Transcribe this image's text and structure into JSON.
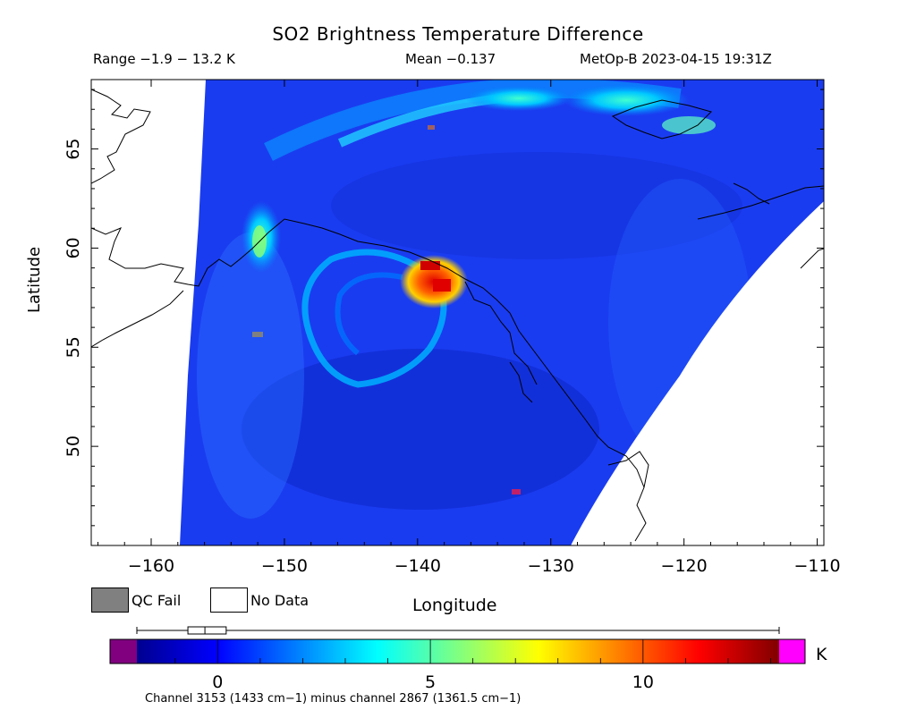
{
  "header": {
    "title": "SO2 Brightness Temperature Difference",
    "range": "Range −1.9 − 13.2 K",
    "mean": "Mean −0.137",
    "satellite": "MetOp-B 2023-04-15 19:31Z"
  },
  "axes": {
    "ylabel": "Latitude",
    "xlabel": "Longitude",
    "x_ticks": [
      {
        "value": -160,
        "label": "−160"
      },
      {
        "value": -150,
        "label": "−150"
      },
      {
        "value": -140,
        "label": "−140"
      },
      {
        "value": -130,
        "label": "−130"
      },
      {
        "value": -120,
        "label": "−120"
      },
      {
        "value": -110,
        "label": "−110"
      }
    ],
    "y_ticks": [
      {
        "value": 65,
        "label": "65"
      },
      {
        "value": 60,
        "label": "60"
      },
      {
        "value": 55,
        "label": "55"
      },
      {
        "value": 50,
        "label": "50"
      }
    ],
    "xlim": [
      -164.5,
      -109.5
    ],
    "ylim": [
      45,
      68.5
    ]
  },
  "legend": {
    "qc_fail": "QC Fail",
    "no_data": "No Data",
    "qc_color": "#808080"
  },
  "colorbar": {
    "unit": "K",
    "ticks": [
      {
        "value": 0,
        "label": "0"
      },
      {
        "value": 5,
        "label": "5"
      },
      {
        "value": 10,
        "label": "10"
      }
    ],
    "range": [
      -1.9,
      13.2
    ],
    "under_color": "#800080",
    "over_color": "#ff00ff",
    "stops": [
      "#00008f",
      "#0000ff",
      "#0080ff",
      "#00ffff",
      "#80ff80",
      "#ffff00",
      "#ff8000",
      "#ff0000",
      "#800000"
    ],
    "boxplot": {
      "min": -1.9,
      "q1": -0.7,
      "median": -0.3,
      "q3": 0.2,
      "max": 13.2
    }
  },
  "footer": "Channel 3153 (1433 cm−1) minus channel 2867 (1361.5 cm−1)"
}
